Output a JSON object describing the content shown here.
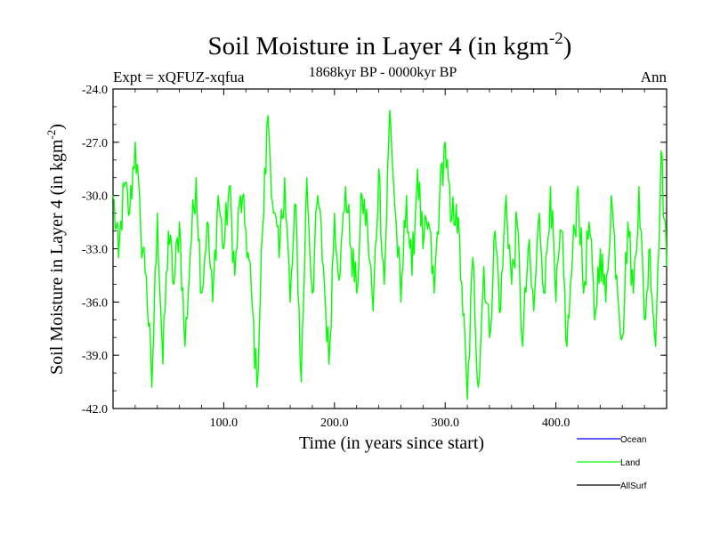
{
  "chart_data": {
    "type": "line",
    "title": "Soil Moisture in Layer 4 (in kgm",
    "title_sup": "-2",
    "title_close": ")",
    "subtitle": "1868kyr BP - 0000kyr BP",
    "expt_label": "Expt = xQFUZ-xqfua",
    "season_label": "Ann",
    "xlabel": "Time (in years since start)",
    "ylabel": "Soil Moisture in Layer 4 (in kgm",
    "ylabel_sup": "-2",
    "ylabel_close": ")",
    "xlim": [
      0,
      500
    ],
    "ylim": [
      -42.0,
      -24.0
    ],
    "x_ticks": [
      100,
      200,
      300,
      400
    ],
    "x_tick_labels": [
      "100.0",
      "200.0",
      "300.0",
      "400.0"
    ],
    "y_ticks": [
      -24,
      -27,
      -30,
      -33,
      -36,
      -39,
      -42
    ],
    "y_tick_labels": [
      "-24.0",
      "-27.0",
      "-30.0",
      "-33.0",
      "-36.0",
      "-39.0",
      "-42.0"
    ],
    "legend": [
      {
        "name": "Ocean",
        "color": "#0000ff"
      },
      {
        "name": "Land",
        "color": "#00ff00"
      },
      {
        "name": "AllSurf",
        "color": "#000000"
      }
    ],
    "series": [
      {
        "name": "Land",
        "color": "#00ff00",
        "x": [
          0,
          5,
          10,
          15,
          20,
          25,
          30,
          35,
          40,
          45,
          50,
          55,
          60,
          65,
          70,
          75,
          80,
          85,
          90,
          95,
          100,
          105,
          110,
          115,
          120,
          125,
          130,
          135,
          140,
          145,
          150,
          155,
          160,
          165,
          170,
          175,
          180,
          185,
          190,
          195,
          200,
          205,
          210,
          215,
          220,
          225,
          230,
          235,
          240,
          245,
          250,
          255,
          260,
          265,
          270,
          275,
          280,
          285,
          290,
          295,
          300,
          305,
          310,
          315,
          320,
          325,
          330,
          335,
          340,
          345,
          350,
          355,
          360,
          365,
          370,
          375,
          380,
          385,
          390,
          395,
          400,
          405,
          410,
          415,
          420,
          425,
          430,
          435,
          440,
          445,
          450,
          455,
          460,
          465,
          470,
          475,
          480,
          485,
          490,
          495,
          500
        ],
        "values": [
          -30.0,
          -33.5,
          -29.5,
          -31.0,
          -27.0,
          -32.0,
          -34.5,
          -40.8,
          -31.0,
          -39.5,
          -32.0,
          -35.0,
          -31.5,
          -38.5,
          -33.0,
          -29.0,
          -35.5,
          -31.5,
          -36.0,
          -30.0,
          -33.0,
          -29.5,
          -34.5,
          -30.0,
          -32.0,
          -35.5,
          -40.8,
          -32.0,
          -25.5,
          -31.0,
          -33.5,
          -29.0,
          -36.0,
          -30.5,
          -40.5,
          -29.0,
          -35.5,
          -30.0,
          -34.0,
          -39.5,
          -31.0,
          -34.5,
          -29.5,
          -33.0,
          -35.5,
          -30.0,
          -32.0,
          -36.5,
          -28.5,
          -35.0,
          -25.2,
          -31.0,
          -36.0,
          -30.0,
          -34.5,
          -28.5,
          -33.0,
          -31.5,
          -35.5,
          -30.0,
          -27.0,
          -31.5,
          -30.5,
          -35.0,
          -41.5,
          -33.5,
          -40.8,
          -34.0,
          -38.0,
          -32.0,
          -36.5,
          -30.0,
          -35.0,
          -31.5,
          -38.5,
          -33.0,
          -36.5,
          -31.0,
          -35.5,
          -29.5,
          -36.0,
          -32.0,
          -38.5,
          -33.5,
          -29.5,
          -35.5,
          -31.5,
          -37.0,
          -33.0,
          -36.0,
          -30.0,
          -34.5,
          -38.0,
          -31.5,
          -35.5,
          -29.5,
          -37.0,
          -33.0,
          -38.5,
          -27.5,
          -34.0
        ]
      }
    ]
  }
}
